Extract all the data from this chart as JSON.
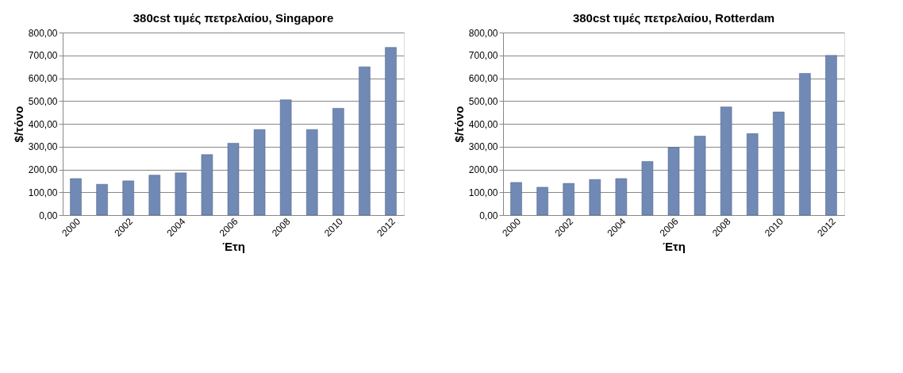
{
  "chart_data": [
    {
      "type": "bar",
      "title": "380cst τιμές πετρελαίου, Singapore",
      "xlabel": "Έτη",
      "ylabel": "$/τόνο",
      "categories": [
        "2000",
        null,
        "2002",
        null,
        "2004",
        null,
        "2006",
        null,
        "2008",
        null,
        "2010",
        null,
        "2012"
      ],
      "values": [
        160,
        135,
        150,
        175,
        185,
        265,
        315,
        375,
        505,
        375,
        468,
        650,
        735
      ],
      "color": "#7189b5",
      "ylim": [
        0,
        800
      ],
      "yticks": [
        {
          "value": 0,
          "label": "0,00"
        },
        {
          "value": 100,
          "label": "100,00"
        },
        {
          "value": 200,
          "label": "200,00"
        },
        {
          "value": 300,
          "label": "300,00"
        },
        {
          "value": 400,
          "label": "400,00"
        },
        {
          "value": 500,
          "label": "500,00"
        },
        {
          "value": 600,
          "label": "600,00"
        },
        {
          "value": 700,
          "label": "700,00"
        },
        {
          "value": 800,
          "label": "800,00"
        }
      ],
      "grid": "y"
    },
    {
      "type": "bar",
      "title": "380cst τιμές πετρελαίου, Rotterdam",
      "xlabel": "Έτη",
      "ylabel": "$/τόνο",
      "categories": [
        "2000",
        null,
        "2002",
        null,
        "2004",
        null,
        "2006",
        null,
        "2008",
        null,
        "2010",
        null,
        "2012"
      ],
      "values": [
        143,
        122,
        139,
        156,
        160,
        235,
        297,
        346,
        474,
        357,
        452,
        621,
        700
      ],
      "color": "#7189b5",
      "ylim": [
        0,
        800
      ],
      "yticks": [
        {
          "value": 0,
          "label": "0,00"
        },
        {
          "value": 100,
          "label": "100,00"
        },
        {
          "value": 200,
          "label": "200,00"
        },
        {
          "value": 300,
          "label": "300,00"
        },
        {
          "value": 400,
          "label": "400,00"
        },
        {
          "value": 500,
          "label": "500,00"
        },
        {
          "value": 600,
          "label": "600,00"
        },
        {
          "value": 700,
          "label": "700,00"
        },
        {
          "value": 800,
          "label": "800,00"
        }
      ],
      "grid": "y"
    }
  ]
}
